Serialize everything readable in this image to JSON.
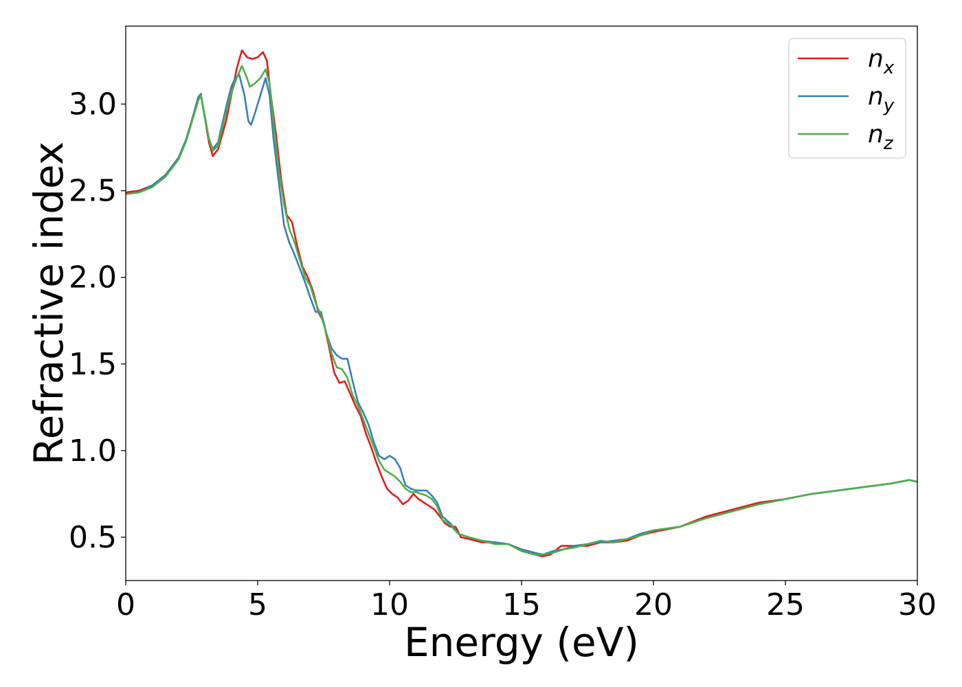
{
  "chart_data": {
    "type": "line",
    "title": "",
    "xlabel": "Energy (eV)",
    "ylabel": "Refractive index",
    "xlim": [
      0,
      30
    ],
    "ylim": [
      0.25,
      3.45
    ],
    "x_ticks": [
      0,
      5,
      10,
      15,
      20,
      25,
      30
    ],
    "x_tick_labels": [
      "0",
      "5",
      "10",
      "15",
      "20",
      "25",
      "30"
    ],
    "y_ticks": [
      0.5,
      1.0,
      1.5,
      2.0,
      2.5,
      3.0
    ],
    "y_tick_labels": [
      "0.5",
      "1.0",
      "1.5",
      "2.0",
      "2.5",
      "3.0"
    ],
    "grid": false,
    "legend": "top-right",
    "series": [
      {
        "name": "n",
        "subscript": "x",
        "color": "#e41a1c",
        "points": [
          [
            0,
            2.49
          ],
          [
            0.5,
            2.5
          ],
          [
            1,
            2.53
          ],
          [
            1.5,
            2.59
          ],
          [
            2,
            2.69
          ],
          [
            2.3,
            2.8
          ],
          [
            2.55,
            2.93
          ],
          [
            2.75,
            3.04
          ],
          [
            2.85,
            3.05
          ],
          [
            3.0,
            2.92
          ],
          [
            3.15,
            2.78
          ],
          [
            3.3,
            2.7
          ],
          [
            3.5,
            2.74
          ],
          [
            3.8,
            2.9
          ],
          [
            4.0,
            3.05
          ],
          [
            4.2,
            3.2
          ],
          [
            4.4,
            3.31
          ],
          [
            4.6,
            3.27
          ],
          [
            4.8,
            3.26
          ],
          [
            5.0,
            3.27
          ],
          [
            5.2,
            3.3
          ],
          [
            5.35,
            3.25
          ],
          [
            5.5,
            3.05
          ],
          [
            5.7,
            2.82
          ],
          [
            5.9,
            2.55
          ],
          [
            6.1,
            2.36
          ],
          [
            6.3,
            2.32
          ],
          [
            6.5,
            2.18
          ],
          [
            6.7,
            2.06
          ],
          [
            6.9,
            2.0
          ],
          [
            7.1,
            1.92
          ],
          [
            7.3,
            1.8
          ],
          [
            7.5,
            1.74
          ],
          [
            7.7,
            1.6
          ],
          [
            7.9,
            1.45
          ],
          [
            8.1,
            1.39
          ],
          [
            8.3,
            1.4
          ],
          [
            8.5,
            1.33
          ],
          [
            8.7,
            1.26
          ],
          [
            8.9,
            1.2
          ],
          [
            9.1,
            1.1
          ],
          [
            9.3,
            1.02
          ],
          [
            9.5,
            0.93
          ],
          [
            9.7,
            0.85
          ],
          [
            9.9,
            0.78
          ],
          [
            10.1,
            0.75
          ],
          [
            10.3,
            0.73
          ],
          [
            10.5,
            0.69
          ],
          [
            10.7,
            0.71
          ],
          [
            10.9,
            0.75
          ],
          [
            11.1,
            0.72
          ],
          [
            11.3,
            0.7
          ],
          [
            11.5,
            0.68
          ],
          [
            11.7,
            0.66
          ],
          [
            11.9,
            0.62
          ],
          [
            12.1,
            0.58
          ],
          [
            12.3,
            0.56
          ],
          [
            12.5,
            0.56
          ],
          [
            12.7,
            0.5
          ],
          [
            13,
            0.49
          ],
          [
            13.5,
            0.47
          ],
          [
            14,
            0.47
          ],
          [
            14.5,
            0.46
          ],
          [
            15,
            0.42
          ],
          [
            15.5,
            0.4
          ],
          [
            15.8,
            0.39
          ],
          [
            16.1,
            0.4
          ],
          [
            16.5,
            0.45
          ],
          [
            17,
            0.45
          ],
          [
            17.5,
            0.45
          ],
          [
            18,
            0.47
          ],
          [
            18.5,
            0.47
          ],
          [
            19,
            0.48
          ],
          [
            19.5,
            0.51
          ],
          [
            20,
            0.53
          ],
          [
            21,
            0.56
          ],
          [
            22,
            0.62
          ],
          [
            23,
            0.66
          ],
          [
            24,
            0.7
          ],
          [
            25,
            0.72
          ],
          [
            26,
            0.75
          ],
          [
            27,
            0.77
          ],
          [
            28,
            0.79
          ],
          [
            29,
            0.81
          ],
          [
            29.7,
            0.83
          ],
          [
            30,
            0.82
          ]
        ]
      },
      {
        "name": "n",
        "subscript": "y",
        "color": "#377eb8",
        "points": [
          [
            0,
            2.48
          ],
          [
            0.5,
            2.49
          ],
          [
            1,
            2.53
          ],
          [
            1.5,
            2.59
          ],
          [
            2,
            2.69
          ],
          [
            2.3,
            2.8
          ],
          [
            2.55,
            2.93
          ],
          [
            2.75,
            3.04
          ],
          [
            2.85,
            3.06
          ],
          [
            3.0,
            2.92
          ],
          [
            3.15,
            2.8
          ],
          [
            3.3,
            2.74
          ],
          [
            3.5,
            2.78
          ],
          [
            3.8,
            2.98
          ],
          [
            4.0,
            3.1
          ],
          [
            4.15,
            3.15
          ],
          [
            4.3,
            3.17
          ],
          [
            4.5,
            3.05
          ],
          [
            4.65,
            2.9
          ],
          [
            4.75,
            2.88
          ],
          [
            4.9,
            2.95
          ],
          [
            5.1,
            3.05
          ],
          [
            5.3,
            3.15
          ],
          [
            5.45,
            3.05
          ],
          [
            5.6,
            2.8
          ],
          [
            5.8,
            2.55
          ],
          [
            6.0,
            2.3
          ],
          [
            6.2,
            2.2
          ],
          [
            6.4,
            2.13
          ],
          [
            6.6,
            2.05
          ],
          [
            6.8,
            1.97
          ],
          [
            7.0,
            1.88
          ],
          [
            7.2,
            1.8
          ],
          [
            7.4,
            1.8
          ],
          [
            7.6,
            1.68
          ],
          [
            7.8,
            1.59
          ],
          [
            8.0,
            1.55
          ],
          [
            8.2,
            1.53
          ],
          [
            8.4,
            1.53
          ],
          [
            8.6,
            1.4
          ],
          [
            8.8,
            1.28
          ],
          [
            9.0,
            1.22
          ],
          [
            9.2,
            1.15
          ],
          [
            9.4,
            1.05
          ],
          [
            9.6,
            0.97
          ],
          [
            9.8,
            0.95
          ],
          [
            10.0,
            0.97
          ],
          [
            10.2,
            0.95
          ],
          [
            10.4,
            0.9
          ],
          [
            10.6,
            0.8
          ],
          [
            10.8,
            0.78
          ],
          [
            11.0,
            0.77
          ],
          [
            11.2,
            0.77
          ],
          [
            11.4,
            0.77
          ],
          [
            11.6,
            0.74
          ],
          [
            11.8,
            0.7
          ],
          [
            12.0,
            0.62
          ],
          [
            12.3,
            0.58
          ],
          [
            12.6,
            0.52
          ],
          [
            13,
            0.5
          ],
          [
            13.5,
            0.48
          ],
          [
            14,
            0.47
          ],
          [
            14.5,
            0.46
          ],
          [
            15,
            0.43
          ],
          [
            15.5,
            0.41
          ],
          [
            15.8,
            0.4
          ],
          [
            16.2,
            0.42
          ],
          [
            16.6,
            0.43
          ],
          [
            17,
            0.45
          ],
          [
            17.5,
            0.46
          ],
          [
            18,
            0.47
          ],
          [
            18.5,
            0.48
          ],
          [
            19,
            0.49
          ],
          [
            19.5,
            0.52
          ],
          [
            20,
            0.54
          ],
          [
            21,
            0.56
          ],
          [
            22,
            0.61
          ],
          [
            23,
            0.65
          ],
          [
            24,
            0.69
          ],
          [
            25,
            0.72
          ],
          [
            26,
            0.75
          ],
          [
            27,
            0.77
          ],
          [
            28,
            0.79
          ],
          [
            29,
            0.81
          ],
          [
            29.7,
            0.83
          ],
          [
            30,
            0.82
          ]
        ]
      },
      {
        "name": "n",
        "subscript": "z",
        "color": "#4daf4a",
        "points": [
          [
            0,
            2.48
          ],
          [
            0.5,
            2.49
          ],
          [
            1,
            2.52
          ],
          [
            1.5,
            2.58
          ],
          [
            2,
            2.68
          ],
          [
            2.3,
            2.79
          ],
          [
            2.55,
            2.92
          ],
          [
            2.75,
            3.02
          ],
          [
            2.85,
            3.05
          ],
          [
            3.0,
            2.93
          ],
          [
            3.15,
            2.8
          ],
          [
            3.3,
            2.73
          ],
          [
            3.5,
            2.76
          ],
          [
            3.8,
            2.95
          ],
          [
            4.0,
            3.06
          ],
          [
            4.2,
            3.15
          ],
          [
            4.4,
            3.22
          ],
          [
            4.6,
            3.15
          ],
          [
            4.7,
            3.1
          ],
          [
            4.9,
            3.12
          ],
          [
            5.1,
            3.15
          ],
          [
            5.3,
            3.2
          ],
          [
            5.45,
            3.12
          ],
          [
            5.6,
            2.9
          ],
          [
            5.8,
            2.62
          ],
          [
            6.0,
            2.42
          ],
          [
            6.2,
            2.28
          ],
          [
            6.4,
            2.2
          ],
          [
            6.6,
            2.1
          ],
          [
            6.8,
            2.0
          ],
          [
            7.0,
            1.95
          ],
          [
            7.2,
            1.85
          ],
          [
            7.4,
            1.78
          ],
          [
            7.6,
            1.68
          ],
          [
            7.8,
            1.56
          ],
          [
            8.0,
            1.48
          ],
          [
            8.2,
            1.47
          ],
          [
            8.4,
            1.42
          ],
          [
            8.6,
            1.32
          ],
          [
            8.8,
            1.26
          ],
          [
            9.0,
            1.18
          ],
          [
            9.2,
            1.1
          ],
          [
            9.4,
            1.02
          ],
          [
            9.6,
            0.94
          ],
          [
            9.8,
            0.89
          ],
          [
            10.0,
            0.87
          ],
          [
            10.2,
            0.85
          ],
          [
            10.4,
            0.82
          ],
          [
            10.6,
            0.78
          ],
          [
            10.8,
            0.76
          ],
          [
            11.0,
            0.76
          ],
          [
            11.2,
            0.75
          ],
          [
            11.4,
            0.74
          ],
          [
            11.6,
            0.72
          ],
          [
            11.8,
            0.68
          ],
          [
            12.0,
            0.6
          ],
          [
            12.3,
            0.57
          ],
          [
            12.6,
            0.52
          ],
          [
            13,
            0.5
          ],
          [
            13.5,
            0.48
          ],
          [
            14,
            0.46
          ],
          [
            14.5,
            0.46
          ],
          [
            15,
            0.42
          ],
          [
            15.5,
            0.4
          ],
          [
            15.8,
            0.4
          ],
          [
            16.2,
            0.41
          ],
          [
            16.6,
            0.43
          ],
          [
            17,
            0.44
          ],
          [
            17.5,
            0.46
          ],
          [
            18,
            0.48
          ],
          [
            18.5,
            0.47
          ],
          [
            19,
            0.49
          ],
          [
            19.5,
            0.51
          ],
          [
            20,
            0.54
          ],
          [
            21,
            0.56
          ],
          [
            22,
            0.61
          ],
          [
            23,
            0.65
          ],
          [
            24,
            0.69
          ],
          [
            25,
            0.72
          ],
          [
            26,
            0.75
          ],
          [
            27,
            0.77
          ],
          [
            28,
            0.79
          ],
          [
            29,
            0.81
          ],
          [
            29.7,
            0.83
          ],
          [
            30,
            0.82
          ]
        ]
      }
    ]
  }
}
